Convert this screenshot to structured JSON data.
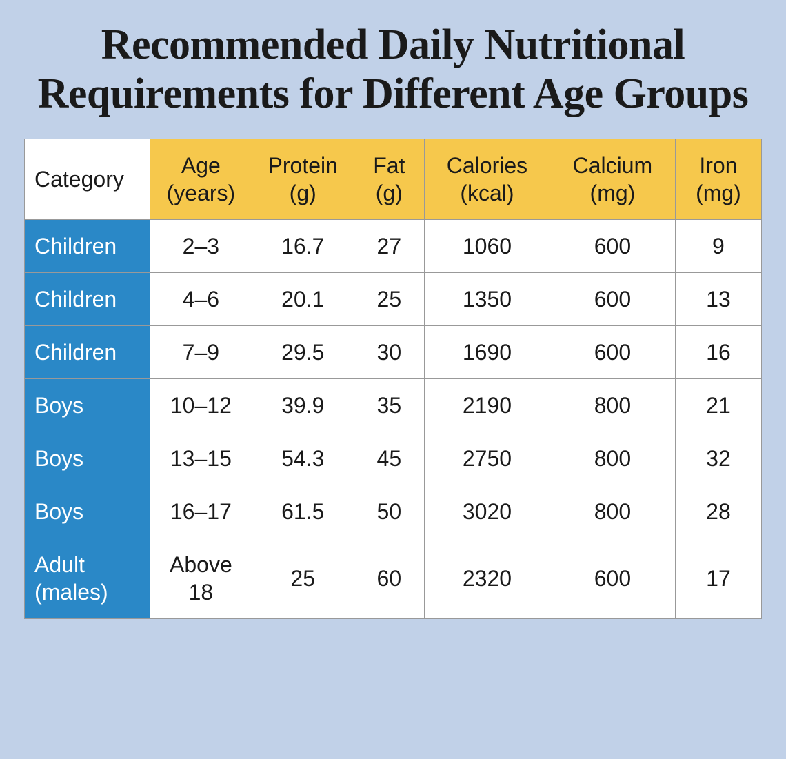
{
  "title": "Recommended Daily Nutritional Requirements for Different Age Groups",
  "title_fontsize": 62,
  "table": {
    "type": "table",
    "corner_label": "Category",
    "header_bg": "#f6c84c",
    "rowheader_bg": "#2a88c7",
    "rowheader_color": "#ffffff",
    "cell_bg": "#ffffff",
    "border_color": "#999999",
    "cell_fontsize": 32,
    "columns": [
      "Age (years)",
      "Protein (g)",
      "Fat (g)",
      "Calories (kcal)",
      "Calcium (mg)",
      "Iron (mg)"
    ],
    "col_widths_pct": [
      16,
      13,
      13,
      9,
      16,
      16,
      11
    ],
    "rows": [
      {
        "category": "Children",
        "cells": [
          "2–3",
          "16.7",
          "27",
          "1060",
          "600",
          "9"
        ]
      },
      {
        "category": "Children",
        "cells": [
          "4–6",
          "20.1",
          "25",
          "1350",
          "600",
          "13"
        ]
      },
      {
        "category": "Children",
        "cells": [
          "7–9",
          "29.5",
          "30",
          "1690",
          "600",
          "16"
        ]
      },
      {
        "category": "Boys",
        "cells": [
          "10–12",
          "39.9",
          "35",
          "2190",
          "800",
          "21"
        ]
      },
      {
        "category": "Boys",
        "cells": [
          "13–15",
          "54.3",
          "45",
          "2750",
          "800",
          "32"
        ]
      },
      {
        "category": "Boys",
        "cells": [
          "16–17",
          "61.5",
          "50",
          "3020",
          "800",
          "28"
        ]
      },
      {
        "category": "Adult (males)",
        "cells": [
          "Above 18",
          "25",
          "60",
          "2320",
          "600",
          "17"
        ]
      }
    ]
  },
  "background_color": "#c1d1e8"
}
